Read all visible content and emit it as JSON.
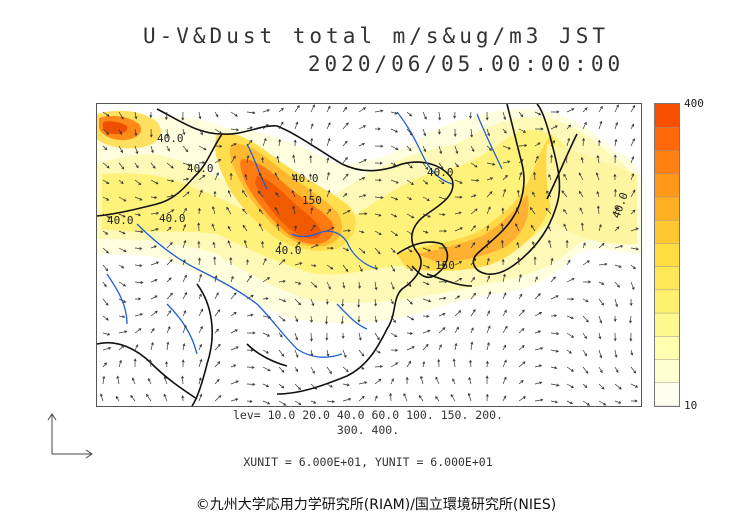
{
  "title": {
    "line1": "U-V&Dust total m/s&ug/m3 JST",
    "line2": "2020/06/05.00:00:00"
  },
  "colorbar": {
    "max_label": "400",
    "min_label": "10",
    "colors": [
      "#fffff0",
      "#ffffd2",
      "#ffffb0",
      "#fff890",
      "#fff070",
      "#ffe858",
      "#ffdc40",
      "#ffc830",
      "#ffb020",
      "#ff9818",
      "#ff8010",
      "#ff6808",
      "#f85000"
    ]
  },
  "levels": {
    "line1": "lev= 10.0 20.0 40.0 60.0 100. 150. 200.",
    "line2": "300. 400."
  },
  "units": "XUNIT = 6.000E+01, YUNIT = 6.000E+01",
  "contour_labels": [
    "40.0",
    "40.0",
    "40.0",
    "40.0",
    "40.0",
    "150",
    "40.0",
    "40.0",
    "150",
    "40.0"
  ],
  "copyright": "©九州大学応用力学研究所(RIAM)/国立環境研究所(NIES)",
  "colors": {
    "coast": "#111111",
    "river": "#1f5fd6",
    "arrow": "#333333"
  }
}
